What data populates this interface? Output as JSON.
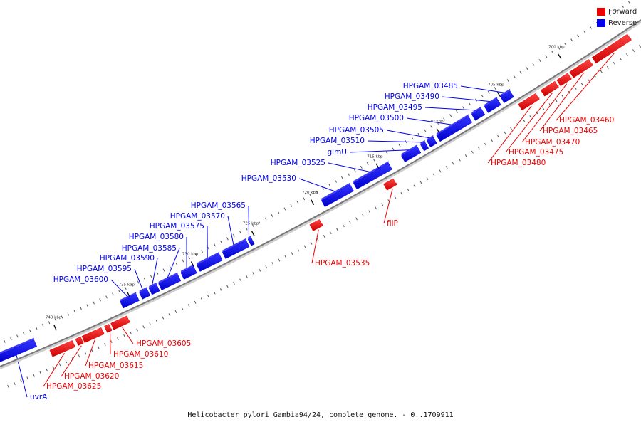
{
  "legend": {
    "forward_label": "Forward",
    "reverse_label": "Reverse",
    "forward_color": "#ee0000",
    "reverse_color": "#0000ee"
  },
  "footer": {
    "caption": "Helicobacter pylori Gambia94/24, complete genome. - 0..1709911"
  },
  "ticks": [
    {
      "label": "700 kbp"
    },
    {
      "label": "705 kbp"
    },
    {
      "label": "710 kbp"
    },
    {
      "label": "715 kbp"
    },
    {
      "label": "720 kbp"
    },
    {
      "label": "725 kbp"
    },
    {
      "label": "730 kbp"
    },
    {
      "label": "735 kbp"
    },
    {
      "label": "740 kbp"
    }
  ],
  "genes": [
    {
      "name": "HPGAM_03460",
      "strand": "forward"
    },
    {
      "name": "HPGAM_03465",
      "strand": "forward"
    },
    {
      "name": "HPGAM_03470",
      "strand": "forward"
    },
    {
      "name": "HPGAM_03475",
      "strand": "forward"
    },
    {
      "name": "HPGAM_03480",
      "strand": "forward"
    },
    {
      "name": "HPGAM_03485",
      "strand": "reverse"
    },
    {
      "name": "HPGAM_03490",
      "strand": "reverse"
    },
    {
      "name": "HPGAM_03495",
      "strand": "reverse"
    },
    {
      "name": "HPGAM_03500",
      "strand": "reverse"
    },
    {
      "name": "HPGAM_03505",
      "strand": "reverse"
    },
    {
      "name": "HPGAM_03510",
      "strand": "reverse"
    },
    {
      "name": "glmU",
      "strand": "reverse"
    },
    {
      "name": "HPGAM_03525",
      "strand": "reverse"
    },
    {
      "name": "HPGAM_03530",
      "strand": "reverse"
    },
    {
      "name": "fliP",
      "strand": "forward"
    },
    {
      "name": "HPGAM_03535",
      "strand": "forward"
    },
    {
      "name": "HPGAM_03565",
      "strand": "reverse"
    },
    {
      "name": "HPGAM_03570",
      "strand": "reverse"
    },
    {
      "name": "HPGAM_03575",
      "strand": "reverse"
    },
    {
      "name": "HPGAM_03580",
      "strand": "reverse"
    },
    {
      "name": "HPGAM_03585",
      "strand": "reverse"
    },
    {
      "name": "HPGAM_03590",
      "strand": "reverse"
    },
    {
      "name": "HPGAM_03595",
      "strand": "reverse"
    },
    {
      "name": "HPGAM_03600",
      "strand": "reverse"
    },
    {
      "name": "HPGAM_03605",
      "strand": "forward"
    },
    {
      "name": "HPGAM_03610",
      "strand": "forward"
    },
    {
      "name": "HPGAM_03615",
      "strand": "forward"
    },
    {
      "name": "HPGAM_03620",
      "strand": "forward"
    },
    {
      "name": "HPGAM_03625",
      "strand": "forward"
    },
    {
      "name": "uvrA",
      "strand": "reverse"
    }
  ]
}
